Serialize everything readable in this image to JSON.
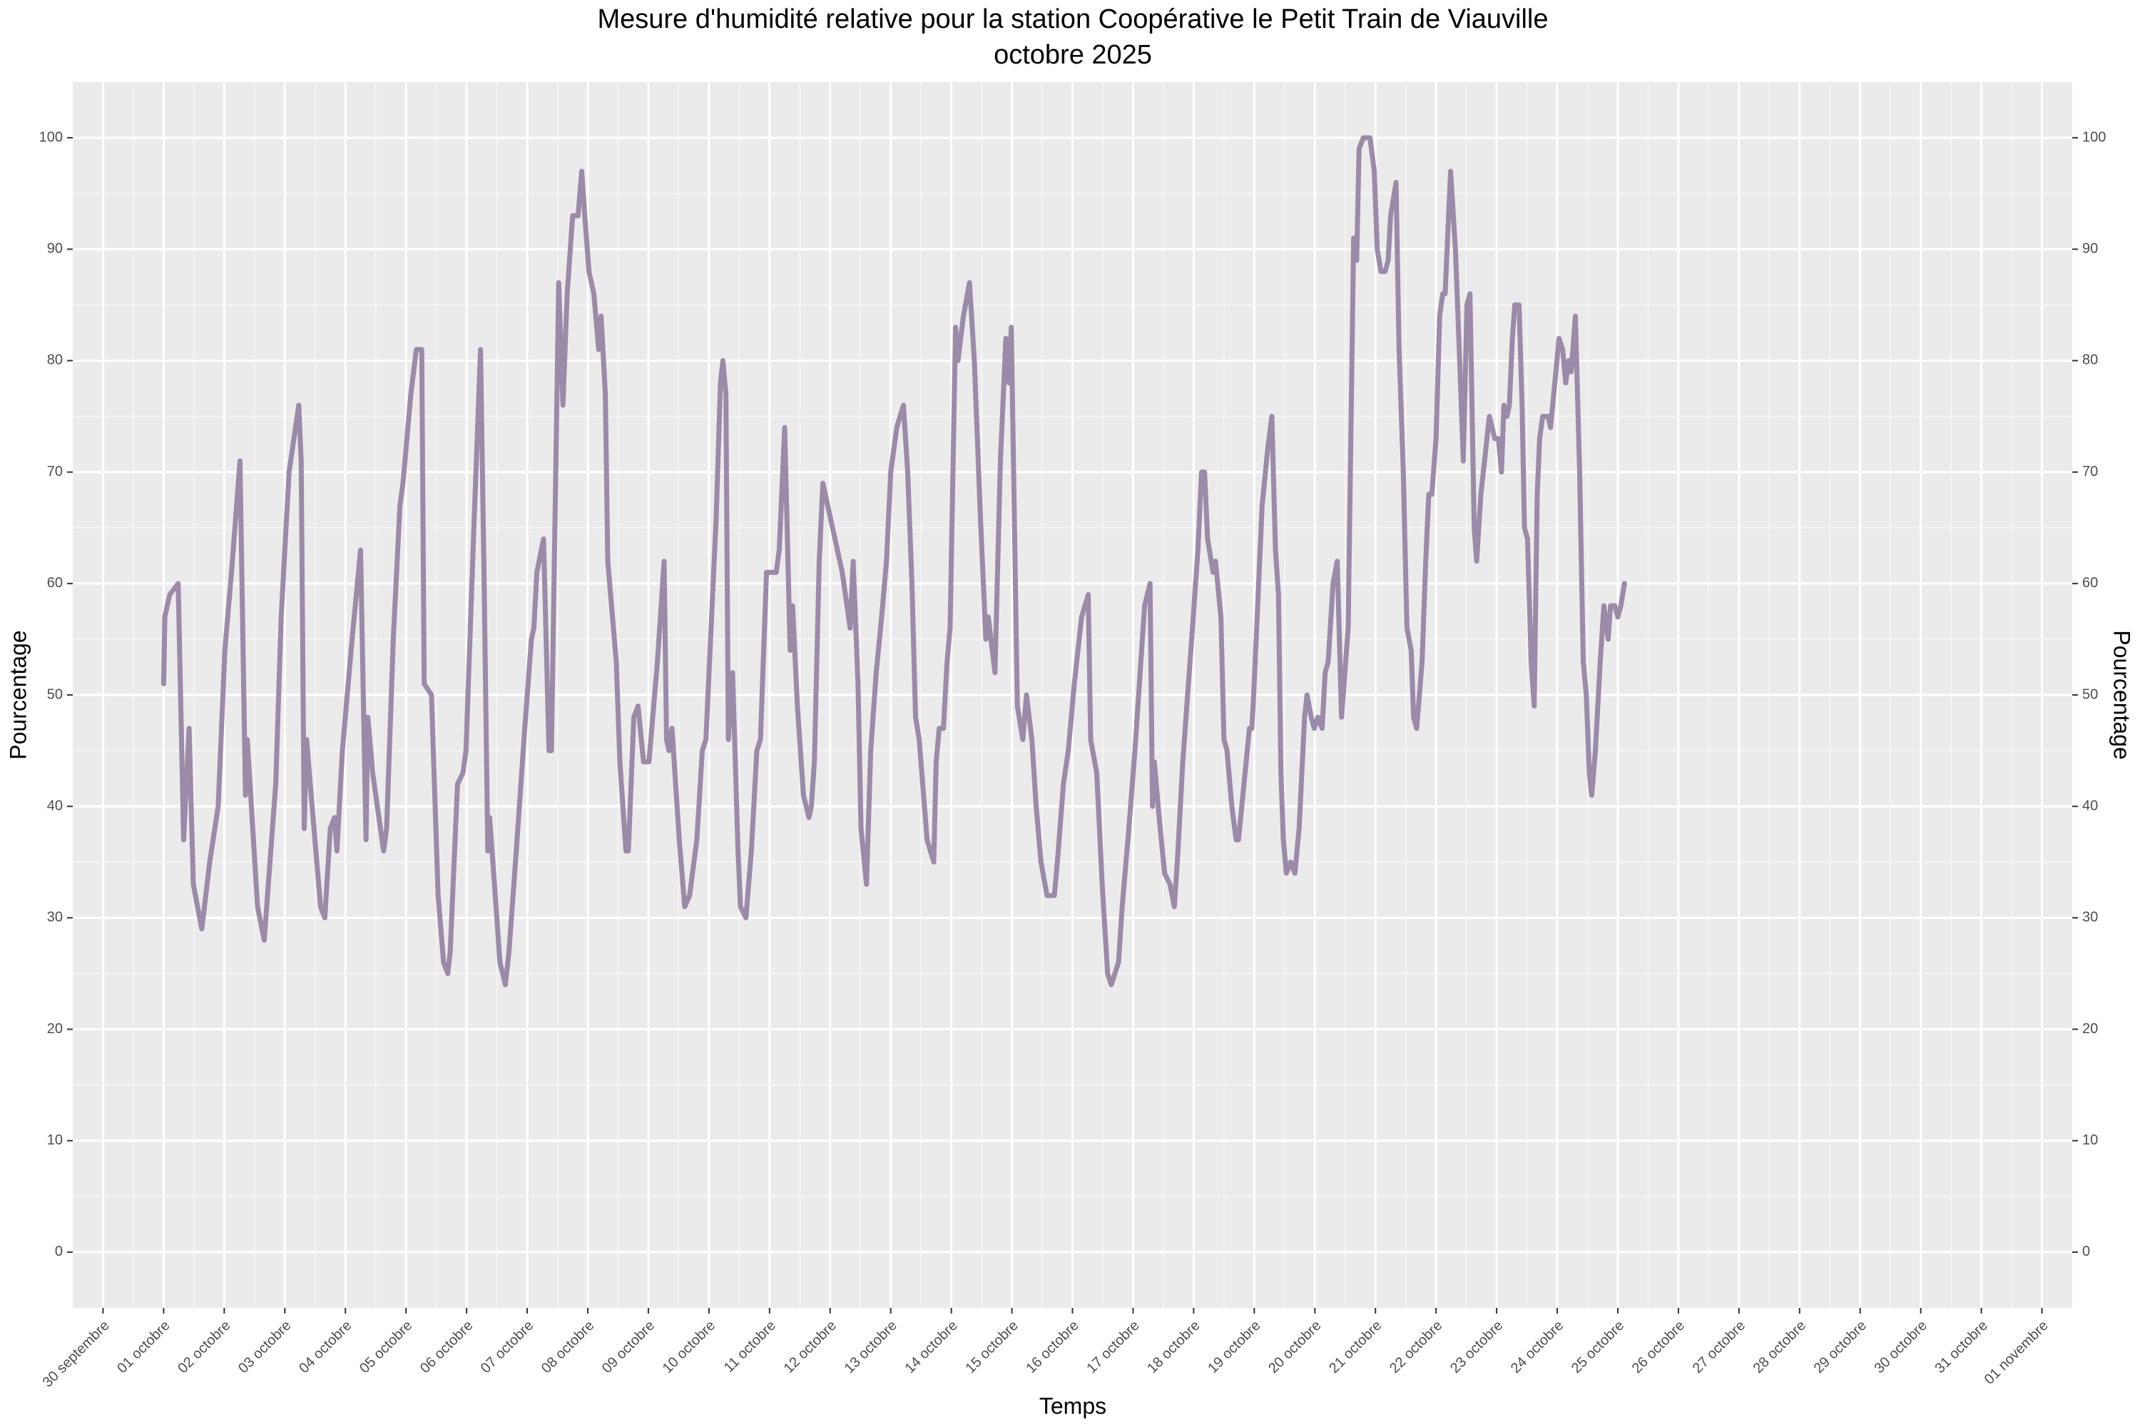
{
  "chart_data": {
    "type": "line",
    "title": "Mesure d'humidité relative pour la station Coopérative le Petit Train de Viauville",
    "subtitle": "octobre 2025",
    "xlabel": "Temps",
    "ylabel": "Pourcentage",
    "y2label": "Pourcentage",
    "grid": true,
    "minor_grid": true,
    "xlim": [
      -0.5,
      32.5
    ],
    "ylim": [
      -5,
      105
    ],
    "y2lim": [
      -5,
      105
    ],
    "yticks": [
      0,
      10,
      20,
      30,
      40,
      50,
      60,
      70,
      80,
      90,
      100
    ],
    "y2ticks": [
      0,
      10,
      20,
      30,
      40,
      50,
      60,
      70,
      80,
      90,
      100
    ],
    "xticks": [
      {
        "value": 0,
        "label": "30 septembre"
      },
      {
        "value": 1,
        "label": "01 octobre"
      },
      {
        "value": 2,
        "label": "02 octobre"
      },
      {
        "value": 3,
        "label": "03 octobre"
      },
      {
        "value": 4,
        "label": "04 octobre"
      },
      {
        "value": 5,
        "label": "05 octobre"
      },
      {
        "value": 6,
        "label": "06 octobre"
      },
      {
        "value": 7,
        "label": "07 octobre"
      },
      {
        "value": 8,
        "label": "08 octobre"
      },
      {
        "value": 9,
        "label": "09 octobre"
      },
      {
        "value": 10,
        "label": "10 octobre"
      },
      {
        "value": 11,
        "label": "11 octobre"
      },
      {
        "value": 12,
        "label": "12 octobre"
      },
      {
        "value": 13,
        "label": "13 octobre"
      },
      {
        "value": 14,
        "label": "14 octobre"
      },
      {
        "value": 15,
        "label": "15 octobre"
      },
      {
        "value": 16,
        "label": "16 octobre"
      },
      {
        "value": 17,
        "label": "17 octobre"
      },
      {
        "value": 18,
        "label": "18 octobre"
      },
      {
        "value": 19,
        "label": "19 octobre"
      },
      {
        "value": 20,
        "label": "20 octobre"
      },
      {
        "value": 21,
        "label": "21 octobre"
      },
      {
        "value": 22,
        "label": "22 octobre"
      },
      {
        "value": 23,
        "label": "23 octobre"
      },
      {
        "value": 24,
        "label": "24 octobre"
      },
      {
        "value": 25,
        "label": "25 octobre"
      },
      {
        "value": 26,
        "label": "26 octobre"
      },
      {
        "value": 27,
        "label": "27 octobre"
      },
      {
        "value": 28,
        "label": "28 octobre"
      },
      {
        "value": 29,
        "label": "29 octobre"
      },
      {
        "value": 30,
        "label": "30 octobre"
      },
      {
        "value": 31,
        "label": "31 octobre"
      },
      {
        "value": 32,
        "label": "01 novembre"
      }
    ],
    "x": [
      1.0,
      1.02,
      1.1,
      1.24,
      1.33,
      1.42,
      1.49,
      1.63,
      1.76,
      1.9,
      2.01,
      2.12,
      2.26,
      2.35,
      2.38,
      2.55,
      2.66,
      2.85,
      2.94,
      3.07,
      3.23,
      3.27,
      3.32,
      3.36,
      3.45,
      3.59,
      3.66,
      3.75,
      3.82,
      3.86,
      3.95,
      4.11,
      4.25,
      4.34,
      4.37,
      4.45,
      4.63,
      4.68,
      4.79,
      4.9,
      4.95,
      5.08,
      5.17,
      5.26,
      5.3,
      5.42,
      5.53,
      5.62,
      5.69,
      5.73,
      5.85,
      5.94,
      5.99,
      6.12,
      6.23,
      6.29,
      6.35,
      6.38,
      6.46,
      6.55,
      6.64,
      6.7,
      6.82,
      6.96,
      7.07,
      7.11,
      7.16,
      7.27,
      7.36,
      7.4,
      7.52,
      7.59,
      7.66,
      7.75,
      7.84,
      7.9,
      7.95,
      8.02,
      8.1,
      8.18,
      8.22,
      8.29,
      8.33,
      8.47,
      8.53,
      8.63,
      8.67,
      8.76,
      8.83,
      8.92,
      9.01,
      9.15,
      9.26,
      9.3,
      9.34,
      9.39,
      9.51,
      9.6,
      9.68,
      9.8,
      9.89,
      9.95,
      10.12,
      10.19,
      10.23,
      10.28,
      10.32,
      10.39,
      10.48,
      10.52,
      10.61,
      10.7,
      10.79,
      10.85,
      10.95,
      11.11,
      11.16,
      11.25,
      11.34,
      11.38,
      11.46,
      11.56,
      11.65,
      11.69,
      11.74,
      11.82,
      11.88,
      12.0,
      12.2,
      12.33,
      12.38,
      12.46,
      12.51,
      12.6,
      12.67,
      12.76,
      12.85,
      12.93,
      13.0,
      13.1,
      13.21,
      13.28,
      13.35,
      13.41,
      13.47,
      13.6,
      13.71,
      13.75,
      13.8,
      13.87,
      13.93,
      13.98,
      14.07,
      14.11,
      14.2,
      14.3,
      14.38,
      14.48,
      14.57,
      14.61,
      14.72,
      14.81,
      14.9,
      14.95,
      14.99,
      15.09,
      15.18,
      15.24,
      15.33,
      15.4,
      15.48,
      15.58,
      15.7,
      15.75,
      15.85,
      15.93,
      16.03,
      16.15,
      16.26,
      16.3,
      16.4,
      16.49,
      16.58,
      16.64,
      16.76,
      16.82,
      16.93,
      17.03,
      17.19,
      17.28,
      17.32,
      17.35,
      17.43,
      17.52,
      17.61,
      17.68,
      17.73,
      17.82,
      17.98,
      18.07,
      18.13,
      18.18,
      18.23,
      18.32,
      18.36,
      18.45,
      18.5,
      18.55,
      18.63,
      18.7,
      18.74,
      18.83,
      18.92,
      18.96,
      18.99,
      19.13,
      19.22,
      19.29,
      19.35,
      19.4,
      19.44,
      19.48,
      19.53,
      19.6,
      19.67,
      19.74,
      19.83,
      19.87,
      19.94,
      19.99,
      20.05,
      20.12,
      20.17,
      20.22,
      20.3,
      20.37,
      20.44,
      20.55,
      20.64,
      20.69,
      20.73,
      20.8,
      20.91,
      20.98,
      21.03,
      21.09,
      21.16,
      21.21,
      21.25,
      21.34,
      21.39,
      21.46,
      21.52,
      21.59,
      21.63,
      21.68,
      21.77,
      21.83,
      21.88,
      21.93,
      22.0,
      22.06,
      22.11,
      22.15,
      22.24,
      22.32,
      22.39,
      22.45,
      22.51,
      22.56,
      22.63,
      22.67,
      22.74,
      22.82,
      22.88,
      22.97,
      23.03,
      23.08,
      23.12,
      23.17,
      23.21,
      23.26,
      23.3,
      23.37,
      23.42,
      23.46,
      23.51,
      23.57,
      23.62,
      23.67,
      23.71,
      23.76,
      23.85,
      23.89,
      23.96,
      24.03,
      24.09,
      24.14,
      24.19,
      24.23,
      24.3,
      24.37,
      24.43,
      24.48,
      24.53,
      24.57,
      24.63,
      24.71,
      24.77,
      24.84,
      24.88,
      24.95,
      25.0,
      25.05,
      25.08,
      25.11
    ],
    "series": [
      {
        "color": "#9b8aa8",
        "values": [
          51,
          57,
          59,
          60,
          37,
          47,
          33,
          29,
          35,
          40,
          54,
          61,
          71,
          41,
          46,
          31,
          28,
          42,
          57,
          70,
          76,
          71,
          38,
          46,
          40,
          31,
          30,
          38,
          39,
          36,
          45,
          55,
          63,
          37,
          48,
          43,
          36,
          38,
          55,
          67,
          69,
          77,
          81,
          81,
          51,
          50,
          32,
          26,
          25,
          27,
          42,
          43,
          45,
          65,
          81,
          60,
          36,
          39,
          33,
          26,
          24,
          27,
          36,
          47,
          55,
          56,
          61,
          64,
          45,
          45,
          87,
          76,
          86,
          93,
          93,
          97,
          93,
          88,
          86,
          81,
          84,
          77,
          62,
          53,
          44,
          36,
          36,
          48,
          49,
          44,
          44,
          53,
          62,
          46,
          45,
          47,
          37,
          31,
          32,
          37,
          45,
          46,
          66,
          78,
          80,
          77,
          46,
          52,
          36,
          31,
          30,
          36,
          45,
          46,
          61,
          61,
          63,
          74,
          54,
          58,
          49,
          41,
          39,
          40,
          44,
          62,
          69,
          66,
          61,
          56,
          62,
          51,
          38,
          33,
          45,
          52,
          57,
          62,
          70,
          74,
          76,
          70,
          60,
          48,
          46,
          37,
          35,
          44,
          47,
          47,
          53,
          56,
          83,
          80,
          84,
          87,
          80,
          66,
          55,
          57,
          52,
          71,
          82,
          78,
          83,
          49,
          46,
          50,
          46,
          40,
          35,
          32,
          32,
          35,
          42,
          45,
          51,
          57,
          59,
          46,
          43,
          33,
          25,
          24,
          26,
          31,
          38,
          45,
          58,
          60,
          40,
          44,
          39,
          34,
          33,
          31,
          35,
          44,
          56,
          63,
          70,
          70,
          64,
          61,
          62,
          57,
          46,
          45,
          40,
          37,
          37,
          42,
          47,
          47,
          50,
          67,
          72,
          75,
          63,
          59,
          43,
          37,
          34,
          35,
          34,
          38,
          48,
          50,
          48,
          47,
          48,
          47,
          52,
          53,
          60,
          62,
          48,
          56,
          91,
          89,
          99,
          100,
          100,
          97,
          90,
          88,
          88,
          89,
          93,
          96,
          81,
          70,
          56,
          54,
          48,
          47,
          53,
          62,
          68,
          68,
          73,
          84,
          86,
          86,
          97,
          90,
          80,
          71,
          85,
          86,
          65,
          62,
          68,
          72,
          75,
          73,
          73,
          70,
          76,
          75,
          76,
          82,
          85,
          85,
          76,
          65,
          64,
          53,
          49,
          68,
          73,
          75,
          75,
          74,
          78,
          82,
          81,
          78,
          80,
          79,
          84,
          70,
          53,
          50,
          43,
          41,
          45,
          53,
          58,
          55,
          58,
          58,
          57,
          58,
          59,
          60
        ]
      }
    ]
  }
}
